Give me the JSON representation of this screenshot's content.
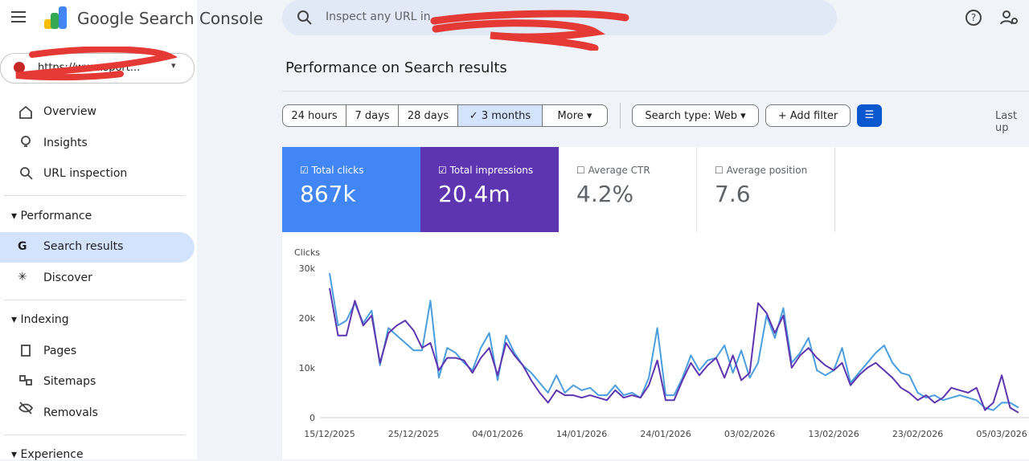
{
  "header": {
    "product": "Google Search Console",
    "search_placeholder": "Inspect any URL in"
  },
  "property": "https://www.sport...",
  "nav": {
    "top": [
      "Overview",
      "Insights",
      "URL inspection"
    ],
    "sections": [
      {
        "title": "Performance",
        "items": [
          "Search results",
          "Discover"
        ]
      },
      {
        "title": "Indexing",
        "items": [
          "Pages",
          "Sitemaps",
          "Removals"
        ]
      },
      {
        "title": "Experience"
      }
    ]
  },
  "page_title": "Performance on Search results",
  "filters": {
    "date_ranges": [
      "24 hours",
      "7 days",
      "28 days",
      "3 months",
      "More"
    ],
    "search_type": "Search type: Web",
    "add_filter": "Add filter",
    "last_updated": "Last up"
  },
  "metrics": [
    {
      "label": "Total clicks",
      "value": "867k"
    },
    {
      "label": "Total impressions",
      "value": "20.4m"
    },
    {
      "label": "Average CTR",
      "value": "4.2%"
    },
    {
      "label": "Average position",
      "value": "7.6"
    }
  ],
  "chart_data": {
    "type": "line",
    "ylabel": "Clicks",
    "x": [
      "15/12/2025",
      "16/12/2025",
      "17/12/2025",
      "18/12/2025",
      "19/12/2025",
      "20/12/2025",
      "21/12/2025",
      "22/12/2025",
      "23/12/2025",
      "24/12/2025",
      "25/12/2025",
      "26/12/2025",
      "27/12/2025",
      "28/12/2025",
      "29/12/2025",
      "30/12/2025",
      "31/12/2025",
      "01/01/2026",
      "02/01/2026",
      "03/01/2026",
      "04/01/2026",
      "05/01/2026",
      "06/01/2026",
      "07/01/2026",
      "08/01/2026",
      "09/01/2026",
      "10/01/2026",
      "11/01/2026",
      "12/01/2026",
      "13/01/2026",
      "14/01/2026",
      "15/01/2026",
      "16/01/2026",
      "17/01/2026",
      "18/01/2026",
      "19/01/2026",
      "20/01/2026",
      "21/01/2026",
      "22/01/2026",
      "23/01/2026",
      "24/01/2026",
      "25/01/2026",
      "26/01/2026",
      "27/01/2026",
      "28/01/2026",
      "29/01/2026",
      "30/01/2026",
      "31/01/2026",
      "01/02/2026",
      "02/02/2026",
      "03/02/2026",
      "04/02/2026",
      "05/02/2026",
      "06/02/2026",
      "07/02/2026",
      "08/02/2026",
      "09/02/2026",
      "10/02/2026",
      "11/02/2026",
      "12/02/2026",
      "13/02/2026",
      "14/02/2026",
      "15/02/2026",
      "16/02/2026",
      "17/02/2026",
      "18/02/2026",
      "19/02/2026",
      "20/02/2026",
      "21/02/2026",
      "22/02/2026",
      "23/02/2026",
      "24/02/2026",
      "25/02/2026",
      "26/02/2026",
      "27/02/2026",
      "28/02/2026",
      "01/03/2026",
      "02/03/2026",
      "03/03/2026",
      "04/03/2026",
      "05/03/2026",
      "06/03/2026",
      "07/03/2026"
    ],
    "series": [
      {
        "name": "Total clicks",
        "color": "#4a9ee0",
        "values": [
          29000,
          18500,
          19500,
          23000,
          19000,
          21500,
          10500,
          18000,
          16500,
          15000,
          13500,
          13500,
          23500,
          8000,
          14000,
          13000,
          11000,
          9500,
          14000,
          17000,
          7500,
          16500,
          13000,
          10500,
          9000,
          7000,
          5000,
          8500,
          5000,
          6500,
          5500,
          6000,
          4500,
          4500,
          6500,
          4500,
          5000,
          4000,
          8000,
          18000,
          4500,
          4500,
          8000,
          12500,
          9500,
          11500,
          12000,
          14500,
          9000,
          13500,
          8000,
          11000,
          20500,
          16000,
          22000,
          11000,
          13000,
          16000,
          9500,
          8500,
          9500,
          14000,
          7000,
          9000,
          11000,
          13000,
          14500,
          11000,
          9000,
          8500,
          5000,
          4000,
          4500,
          3500,
          4000,
          4500,
          4000,
          3500,
          2000,
          1500,
          3000,
          3000,
          2000
        ]
      },
      {
        "name": "Total impressions",
        "color": "#5e35b1",
        "values": [
          26000,
          16500,
          16500,
          23500,
          18500,
          20500,
          11000,
          17000,
          18500,
          19500,
          17500,
          14000,
          15000,
          9500,
          12000,
          12000,
          11500,
          9000,
          12000,
          14000,
          8500,
          15000,
          12500,
          10500,
          7500,
          5000,
          3000,
          5500,
          4500,
          4500,
          4000,
          4500,
          4000,
          3500,
          5500,
          4000,
          4500,
          4000,
          6500,
          11500,
          3500,
          3500,
          7500,
          11000,
          8500,
          10500,
          12000,
          8000,
          12500,
          7500,
          9000,
          23000,
          21000,
          17000,
          20500,
          10000,
          12500,
          14000,
          12000,
          10500,
          9500,
          11000,
          6500,
          8500,
          10000,
          11000,
          9500,
          8000,
          6000,
          5000,
          3500,
          4500,
          3000,
          4000,
          6000,
          5500,
          5000,
          6000,
          1500,
          3000,
          8500,
          2000,
          1000
        ]
      }
    ],
    "ylim": [
      0,
      30000
    ],
    "yticks": [
      0,
      {
        "value": 10000,
        "label": "10k"
      },
      {
        "value": 20000,
        "label": "20k"
      },
      {
        "value": 30000,
        "label": "30k"
      }
    ],
    "xticks": [
      "15/12/2025",
      "25/12/2025",
      "04/01/2026",
      "14/01/2026",
      "24/01/2026",
      "03/02/2026",
      "13/02/2026",
      "23/02/2026",
      "05/03/2026"
    ],
    "grid": false
  }
}
